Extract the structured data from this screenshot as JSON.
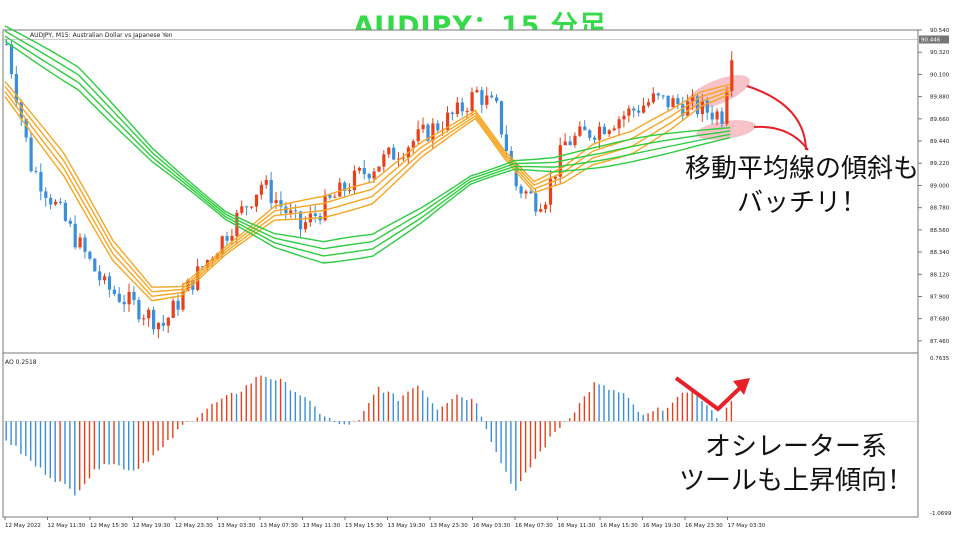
{
  "banner": {
    "title": "AUDJPY：15 分足"
  },
  "chart_header": {
    "symbol_info": "AUDJPY, M15:  Australian Dollar vs Japanese Yen"
  },
  "oscillator_header": {
    "label": "AO 0.2518"
  },
  "annotations": {
    "ma_line1": "移動平均線の傾斜も",
    "ma_line2": "バッチリ！",
    "osc_line1": "オシレーター系",
    "osc_line2": "ツールも上昇傾向！"
  },
  "colors": {
    "bull": "#e8401a",
    "bear": "#3a8fd8",
    "ma_fast": "#f5a623",
    "ma_slow": "#2ecc40",
    "highlight": "#f4b8c0",
    "arrow": "#e8202a",
    "banner": "#35d94a",
    "current_price_bg": "#777777"
  },
  "chart_data": [
    {
      "type": "candlestick",
      "title": "AUDJPY, M15:  Australian Dollar vs Japanese Yen",
      "ylim": [
        87.34,
        90.54
      ],
      "price_ticks": [
        "90.540",
        "90.320",
        "90.100",
        "89.880",
        "89.660",
        "89.440",
        "89.220",
        "89.000",
        "88.780",
        "88.560",
        "88.340",
        "88.120",
        "87.900",
        "87.680",
        "87.460"
      ],
      "current_price": "90.446",
      "time_labels": [
        "12 May 2022",
        "12 May 11:30",
        "12 May 15:30",
        "12 May 19:30",
        "12 May 23:30",
        "13 May 03:30",
        "13 May 07:30",
        "13 May 11:30",
        "13 May 15:30",
        "13 May 19:30",
        "13 May 23:30",
        "16 May 03:30",
        "16 May 07:30",
        "16 May 11:30",
        "16 May 15:30",
        "16 May 19:30",
        "16 May 23:30",
        "17 May 03:30"
      ],
      "close_path": [
        [
          0,
          90.4
        ],
        [
          5,
          89.2
        ],
        [
          20,
          88.0
        ],
        [
          32,
          87.62
        ],
        [
          36,
          87.92
        ],
        [
          52,
          89.02
        ],
        [
          60,
          88.58
        ],
        [
          72,
          89.1
        ],
        [
          92,
          89.72
        ],
        [
          96,
          89.92
        ],
        [
          100,
          89.75
        ],
        [
          104,
          89.0
        ],
        [
          108,
          88.85
        ],
        [
          110,
          88.9
        ],
        [
          114,
          89.42
        ],
        [
          120,
          89.55
        ],
        [
          132,
          89.85
        ],
        [
          140,
          89.78
        ],
        [
          146,
          89.7
        ],
        [
          148,
          90.35
        ]
      ],
      "series": [
        {
          "name": "",
          "kind": "ma_fast",
          "points": [
            [
              0,
              89.95
            ],
            [
              12,
              89.2
            ],
            [
              22,
              88.35
            ],
            [
              30,
              87.92
            ],
            [
              36,
              87.95
            ],
            [
              45,
              88.35
            ],
            [
              55,
              88.72
            ],
            [
              65,
              88.78
            ],
            [
              75,
              88.92
            ],
            [
              85,
              89.35
            ],
            [
              96,
              89.7
            ],
            [
              102,
              89.3
            ],
            [
              108,
              88.98
            ],
            [
              114,
              89.1
            ],
            [
              120,
              89.3
            ],
            [
              128,
              89.42
            ],
            [
              136,
              89.65
            ],
            [
              142,
              89.85
            ],
            [
              148,
              89.95
            ]
          ]
        },
        {
          "name": "",
          "kind": "ma_slow",
          "points": [
            [
              0,
              90.5
            ],
            [
              15,
              90.05
            ],
            [
              30,
              89.3
            ],
            [
              45,
              88.7
            ],
            [
              55,
              88.45
            ],
            [
              65,
              88.33
            ],
            [
              75,
              88.4
            ],
            [
              85,
              88.7
            ],
            [
              95,
              89.05
            ],
            [
              104,
              89.2
            ],
            [
              112,
              89.2
            ],
            [
              122,
              89.28
            ],
            [
              132,
              89.38
            ],
            [
              142,
              89.47
            ],
            [
              148,
              89.52
            ]
          ]
        }
      ]
    },
    {
      "type": "bar",
      "title": "AO 0.2518",
      "ylim": [
        -1.0699,
        0.7635
      ],
      "tick_labels": [
        "0.7635",
        "-1.0699"
      ],
      "envelope": [
        [
          0,
          -0.2
        ],
        [
          6,
          -0.5
        ],
        [
          14,
          -0.8
        ],
        [
          20,
          -0.45
        ],
        [
          26,
          -0.55
        ],
        [
          32,
          -0.3
        ],
        [
          36,
          -0.05
        ],
        [
          42,
          0.18
        ],
        [
          48,
          0.35
        ],
        [
          52,
          0.52
        ],
        [
          56,
          0.45
        ],
        [
          60,
          0.3
        ],
        [
          64,
          0.1
        ],
        [
          68,
          -0.05
        ],
        [
          72,
          0.0
        ],
        [
          76,
          0.38
        ],
        [
          80,
          0.25
        ],
        [
          84,
          0.42
        ],
        [
          88,
          0.15
        ],
        [
          92,
          0.3
        ],
        [
          96,
          0.22
        ],
        [
          100,
          -0.35
        ],
        [
          104,
          -0.78
        ],
        [
          108,
          -0.42
        ],
        [
          112,
          -0.12
        ],
        [
          116,
          0.12
        ],
        [
          120,
          0.42
        ],
        [
          126,
          0.3
        ],
        [
          130,
          0.05
        ],
        [
          136,
          0.2
        ],
        [
          140,
          0.38
        ],
        [
          144,
          0.1
        ],
        [
          146,
          0.02
        ],
        [
          148,
          0.25
        ]
      ]
    }
  ]
}
